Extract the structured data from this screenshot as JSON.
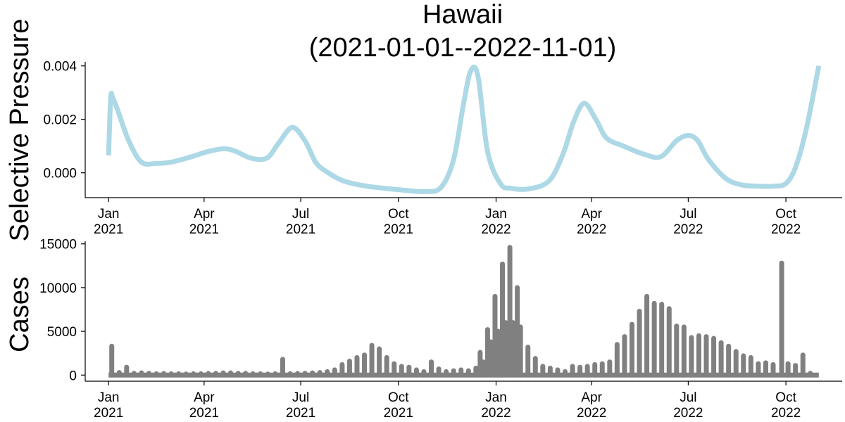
{
  "chart_data": [
    {
      "type": "line",
      "title_line1": "Hawaii",
      "title_line2": "(2021-01-01--2022-11-01)",
      "ylabel": "Selective Pressure",
      "xlim": [
        "2020-12-10",
        "2022-11-23"
      ],
      "ylim": [
        -0.00093,
        0.00415
      ],
      "yticks": [
        {
          "value": 0.0,
          "label": "0.000"
        },
        {
          "value": 0.002,
          "label": "0.002"
        },
        {
          "value": 0.004,
          "label": "0.004"
        }
      ],
      "xticks": [
        {
          "date": "2021-01-01",
          "line1": "Jan",
          "line2": "2021"
        },
        {
          "date": "2021-04-01",
          "line1": "Apr",
          "line2": "2021"
        },
        {
          "date": "2021-07-01",
          "line1": "Jul",
          "line2": "2021"
        },
        {
          "date": "2021-10-01",
          "line1": "Oct",
          "line2": "2021"
        },
        {
          "date": "2022-01-01",
          "line1": "Jan",
          "line2": "2022"
        },
        {
          "date": "2022-04-01",
          "line1": "Apr",
          "line2": "2022"
        },
        {
          "date": "2022-07-01",
          "line1": "Jul",
          "line2": "2022"
        },
        {
          "date": "2022-10-01",
          "line1": "Oct",
          "line2": "2022"
        }
      ],
      "color": "#add8e6",
      "series": [
        {
          "x": [
            "2021-01-01",
            "2021-01-03",
            "2021-01-05",
            "2021-01-10",
            "2021-01-20",
            "2021-02-01",
            "2021-02-15",
            "2021-03-01",
            "2021-03-20",
            "2021-04-05",
            "2021-04-20",
            "2021-05-01",
            "2021-05-15",
            "2021-05-30",
            "2021-06-10",
            "2021-06-23",
            "2021-07-05",
            "2021-07-15",
            "2021-07-25",
            "2021-08-10",
            "2021-09-01",
            "2021-10-01",
            "2021-10-25",
            "2021-11-10",
            "2021-11-22",
            "2021-12-01",
            "2021-12-08",
            "2021-12-15",
            "2021-12-24",
            "2022-01-05",
            "2022-01-15",
            "2022-02-01",
            "2022-02-20",
            "2022-03-05",
            "2022-03-15",
            "2022-03-25",
            "2022-04-05",
            "2022-04-15",
            "2022-05-01",
            "2022-05-20",
            "2022-06-05",
            "2022-06-20",
            "2022-07-01",
            "2022-07-10",
            "2022-07-20",
            "2022-08-05",
            "2022-08-20",
            "2022-09-05",
            "2022-09-20",
            "2022-10-01",
            "2022-10-10",
            "2022-10-20",
            "2022-11-01"
          ],
          "y": [
            0.00065,
            0.0028,
            0.0028,
            0.0023,
            0.0012,
            0.0004,
            0.00035,
            0.0004,
            0.0006,
            0.0008,
            0.0009,
            0.0008,
            0.00055,
            0.00055,
            0.0011,
            0.0017,
            0.0012,
            0.0004,
            5e-05,
            -0.0003,
            -0.0005,
            -0.00063,
            -0.0007,
            -0.00055,
            0.0005,
            0.0025,
            0.0038,
            0.0036,
            0.0008,
            -0.0004,
            -0.00058,
            -0.0006,
            -0.0003,
            0.0007,
            0.0019,
            0.0026,
            0.002,
            0.0013,
            0.001,
            0.0007,
            0.0006,
            0.0012,
            0.0014,
            0.0012,
            0.0005,
            -0.0002,
            -0.00045,
            -0.0005,
            -0.0005,
            -0.0004,
            0.0002,
            0.0016,
            0.004
          ]
        }
      ]
    },
    {
      "type": "bar",
      "ylabel": "Cases",
      "xlim": [
        "2020-12-10",
        "2022-11-23"
      ],
      "ylim": [
        -700,
        15300
      ],
      "yticks": [
        {
          "value": 0,
          "label": "0"
        },
        {
          "value": 5000,
          "label": "5000"
        },
        {
          "value": 10000,
          "label": "10000"
        },
        {
          "value": 15000,
          "label": "15000"
        }
      ],
      "xticks": [
        {
          "date": "2021-01-01",
          "line1": "Jan",
          "line2": "2021"
        },
        {
          "date": "2021-04-01",
          "line1": "Apr",
          "line2": "2021"
        },
        {
          "date": "2021-07-01",
          "line1": "Jul",
          "line2": "2021"
        },
        {
          "date": "2021-10-01",
          "line1": "Oct",
          "line2": "2021"
        },
        {
          "date": "2022-01-01",
          "line1": "Jan",
          "line2": "2022"
        },
        {
          "date": "2022-04-01",
          "line1": "Apr",
          "line2": "2022"
        },
        {
          "date": "2022-07-01",
          "line1": "Jul",
          "line2": "2022"
        },
        {
          "date": "2022-10-01",
          "line1": "Oct",
          "line2": "2022"
        }
      ],
      "baseline_range": [
        "2021-01-01",
        "2022-11-01"
      ],
      "color": "#808080",
      "spikes": [
        {
          "date": "2021-01-04",
          "value": 3300
        },
        {
          "date": "2021-01-11",
          "value": 300
        },
        {
          "date": "2021-01-18",
          "value": 900
        },
        {
          "date": "2021-01-25",
          "value": 200
        },
        {
          "date": "2021-02-01",
          "value": 250
        },
        {
          "date": "2021-02-08",
          "value": 200
        },
        {
          "date": "2021-02-15",
          "value": 150
        },
        {
          "date": "2021-02-22",
          "value": 180
        },
        {
          "date": "2021-03-01",
          "value": 150
        },
        {
          "date": "2021-03-08",
          "value": 150
        },
        {
          "date": "2021-03-15",
          "value": 120
        },
        {
          "date": "2021-03-22",
          "value": 150
        },
        {
          "date": "2021-03-29",
          "value": 150
        },
        {
          "date": "2021-04-05",
          "value": 180
        },
        {
          "date": "2021-04-12",
          "value": 200
        },
        {
          "date": "2021-04-19",
          "value": 250
        },
        {
          "date": "2021-04-26",
          "value": 250
        },
        {
          "date": "2021-05-03",
          "value": 200
        },
        {
          "date": "2021-05-10",
          "value": 200
        },
        {
          "date": "2021-05-17",
          "value": 150
        },
        {
          "date": "2021-05-24",
          "value": 150
        },
        {
          "date": "2021-05-31",
          "value": 120
        },
        {
          "date": "2021-06-07",
          "value": 150
        },
        {
          "date": "2021-06-14",
          "value": 1800
        },
        {
          "date": "2021-06-21",
          "value": 150
        },
        {
          "date": "2021-06-28",
          "value": 180
        },
        {
          "date": "2021-07-05",
          "value": 200
        },
        {
          "date": "2021-07-12",
          "value": 250
        },
        {
          "date": "2021-07-19",
          "value": 300
        },
        {
          "date": "2021-07-26",
          "value": 400
        },
        {
          "date": "2021-08-02",
          "value": 600
        },
        {
          "date": "2021-08-09",
          "value": 1200
        },
        {
          "date": "2021-08-16",
          "value": 1600
        },
        {
          "date": "2021-08-23",
          "value": 2000
        },
        {
          "date": "2021-08-30",
          "value": 2300
        },
        {
          "date": "2021-09-06",
          "value": 3400
        },
        {
          "date": "2021-09-13",
          "value": 3000
        },
        {
          "date": "2021-09-20",
          "value": 2000
        },
        {
          "date": "2021-09-27",
          "value": 1300
        },
        {
          "date": "2021-10-04",
          "value": 1000
        },
        {
          "date": "2021-10-11",
          "value": 900
        },
        {
          "date": "2021-10-18",
          "value": 600
        },
        {
          "date": "2021-10-25",
          "value": 400
        },
        {
          "date": "2021-11-01",
          "value": 1500
        },
        {
          "date": "2021-11-08",
          "value": 700
        },
        {
          "date": "2021-11-15",
          "value": 400
        },
        {
          "date": "2021-11-22",
          "value": 500
        },
        {
          "date": "2021-11-29",
          "value": 600
        },
        {
          "date": "2021-12-06",
          "value": 500
        },
        {
          "date": "2021-12-13",
          "value": 800
        },
        {
          "date": "2021-12-17",
          "value": 2600
        },
        {
          "date": "2021-12-20",
          "value": 1500
        },
        {
          "date": "2021-12-24",
          "value": 5200
        },
        {
          "date": "2021-12-27",
          "value": 3800
        },
        {
          "date": "2021-12-31",
          "value": 9000
        },
        {
          "date": "2022-01-03",
          "value": 5000
        },
        {
          "date": "2022-01-07",
          "value": 12700
        },
        {
          "date": "2022-01-10",
          "value": 6000
        },
        {
          "date": "2022-01-14",
          "value": 14600
        },
        {
          "date": "2022-01-17",
          "value": 6000
        },
        {
          "date": "2022-01-21",
          "value": 10000
        },
        {
          "date": "2022-01-24",
          "value": 5500
        },
        {
          "date": "2022-01-31",
          "value": 3200
        },
        {
          "date": "2022-02-07",
          "value": 1900
        },
        {
          "date": "2022-02-14",
          "value": 1000
        },
        {
          "date": "2022-02-21",
          "value": 800
        },
        {
          "date": "2022-02-28",
          "value": 600
        },
        {
          "date": "2022-03-07",
          "value": 400
        },
        {
          "date": "2022-03-14",
          "value": 1000
        },
        {
          "date": "2022-03-21",
          "value": 900
        },
        {
          "date": "2022-03-28",
          "value": 1000
        },
        {
          "date": "2022-04-04",
          "value": 1200
        },
        {
          "date": "2022-04-11",
          "value": 1300
        },
        {
          "date": "2022-04-18",
          "value": 1500
        },
        {
          "date": "2022-04-25",
          "value": 3500
        },
        {
          "date": "2022-05-02",
          "value": 4400
        },
        {
          "date": "2022-05-09",
          "value": 5800
        },
        {
          "date": "2022-05-16",
          "value": 7300
        },
        {
          "date": "2022-05-23",
          "value": 9000
        },
        {
          "date": "2022-05-30",
          "value": 8200
        },
        {
          "date": "2022-06-06",
          "value": 8100
        },
        {
          "date": "2022-06-13",
          "value": 7600
        },
        {
          "date": "2022-06-20",
          "value": 5600
        },
        {
          "date": "2022-06-27",
          "value": 5500
        },
        {
          "date": "2022-07-04",
          "value": 4300
        },
        {
          "date": "2022-07-11",
          "value": 4500
        },
        {
          "date": "2022-07-18",
          "value": 4400
        },
        {
          "date": "2022-07-25",
          "value": 4200
        },
        {
          "date": "2022-08-01",
          "value": 3700
        },
        {
          "date": "2022-08-08",
          "value": 3300
        },
        {
          "date": "2022-08-15",
          "value": 2700
        },
        {
          "date": "2022-08-22",
          "value": 2200
        },
        {
          "date": "2022-08-29",
          "value": 2000
        },
        {
          "date": "2022-09-05",
          "value": 1300
        },
        {
          "date": "2022-09-12",
          "value": 1400
        },
        {
          "date": "2022-09-19",
          "value": 1200
        },
        {
          "date": "2022-09-27",
          "value": 12800
        },
        {
          "date": "2022-10-03",
          "value": 1300
        },
        {
          "date": "2022-10-10",
          "value": 1100
        },
        {
          "date": "2022-10-17",
          "value": 2300
        },
        {
          "date": "2022-10-24",
          "value": 200
        }
      ]
    }
  ]
}
